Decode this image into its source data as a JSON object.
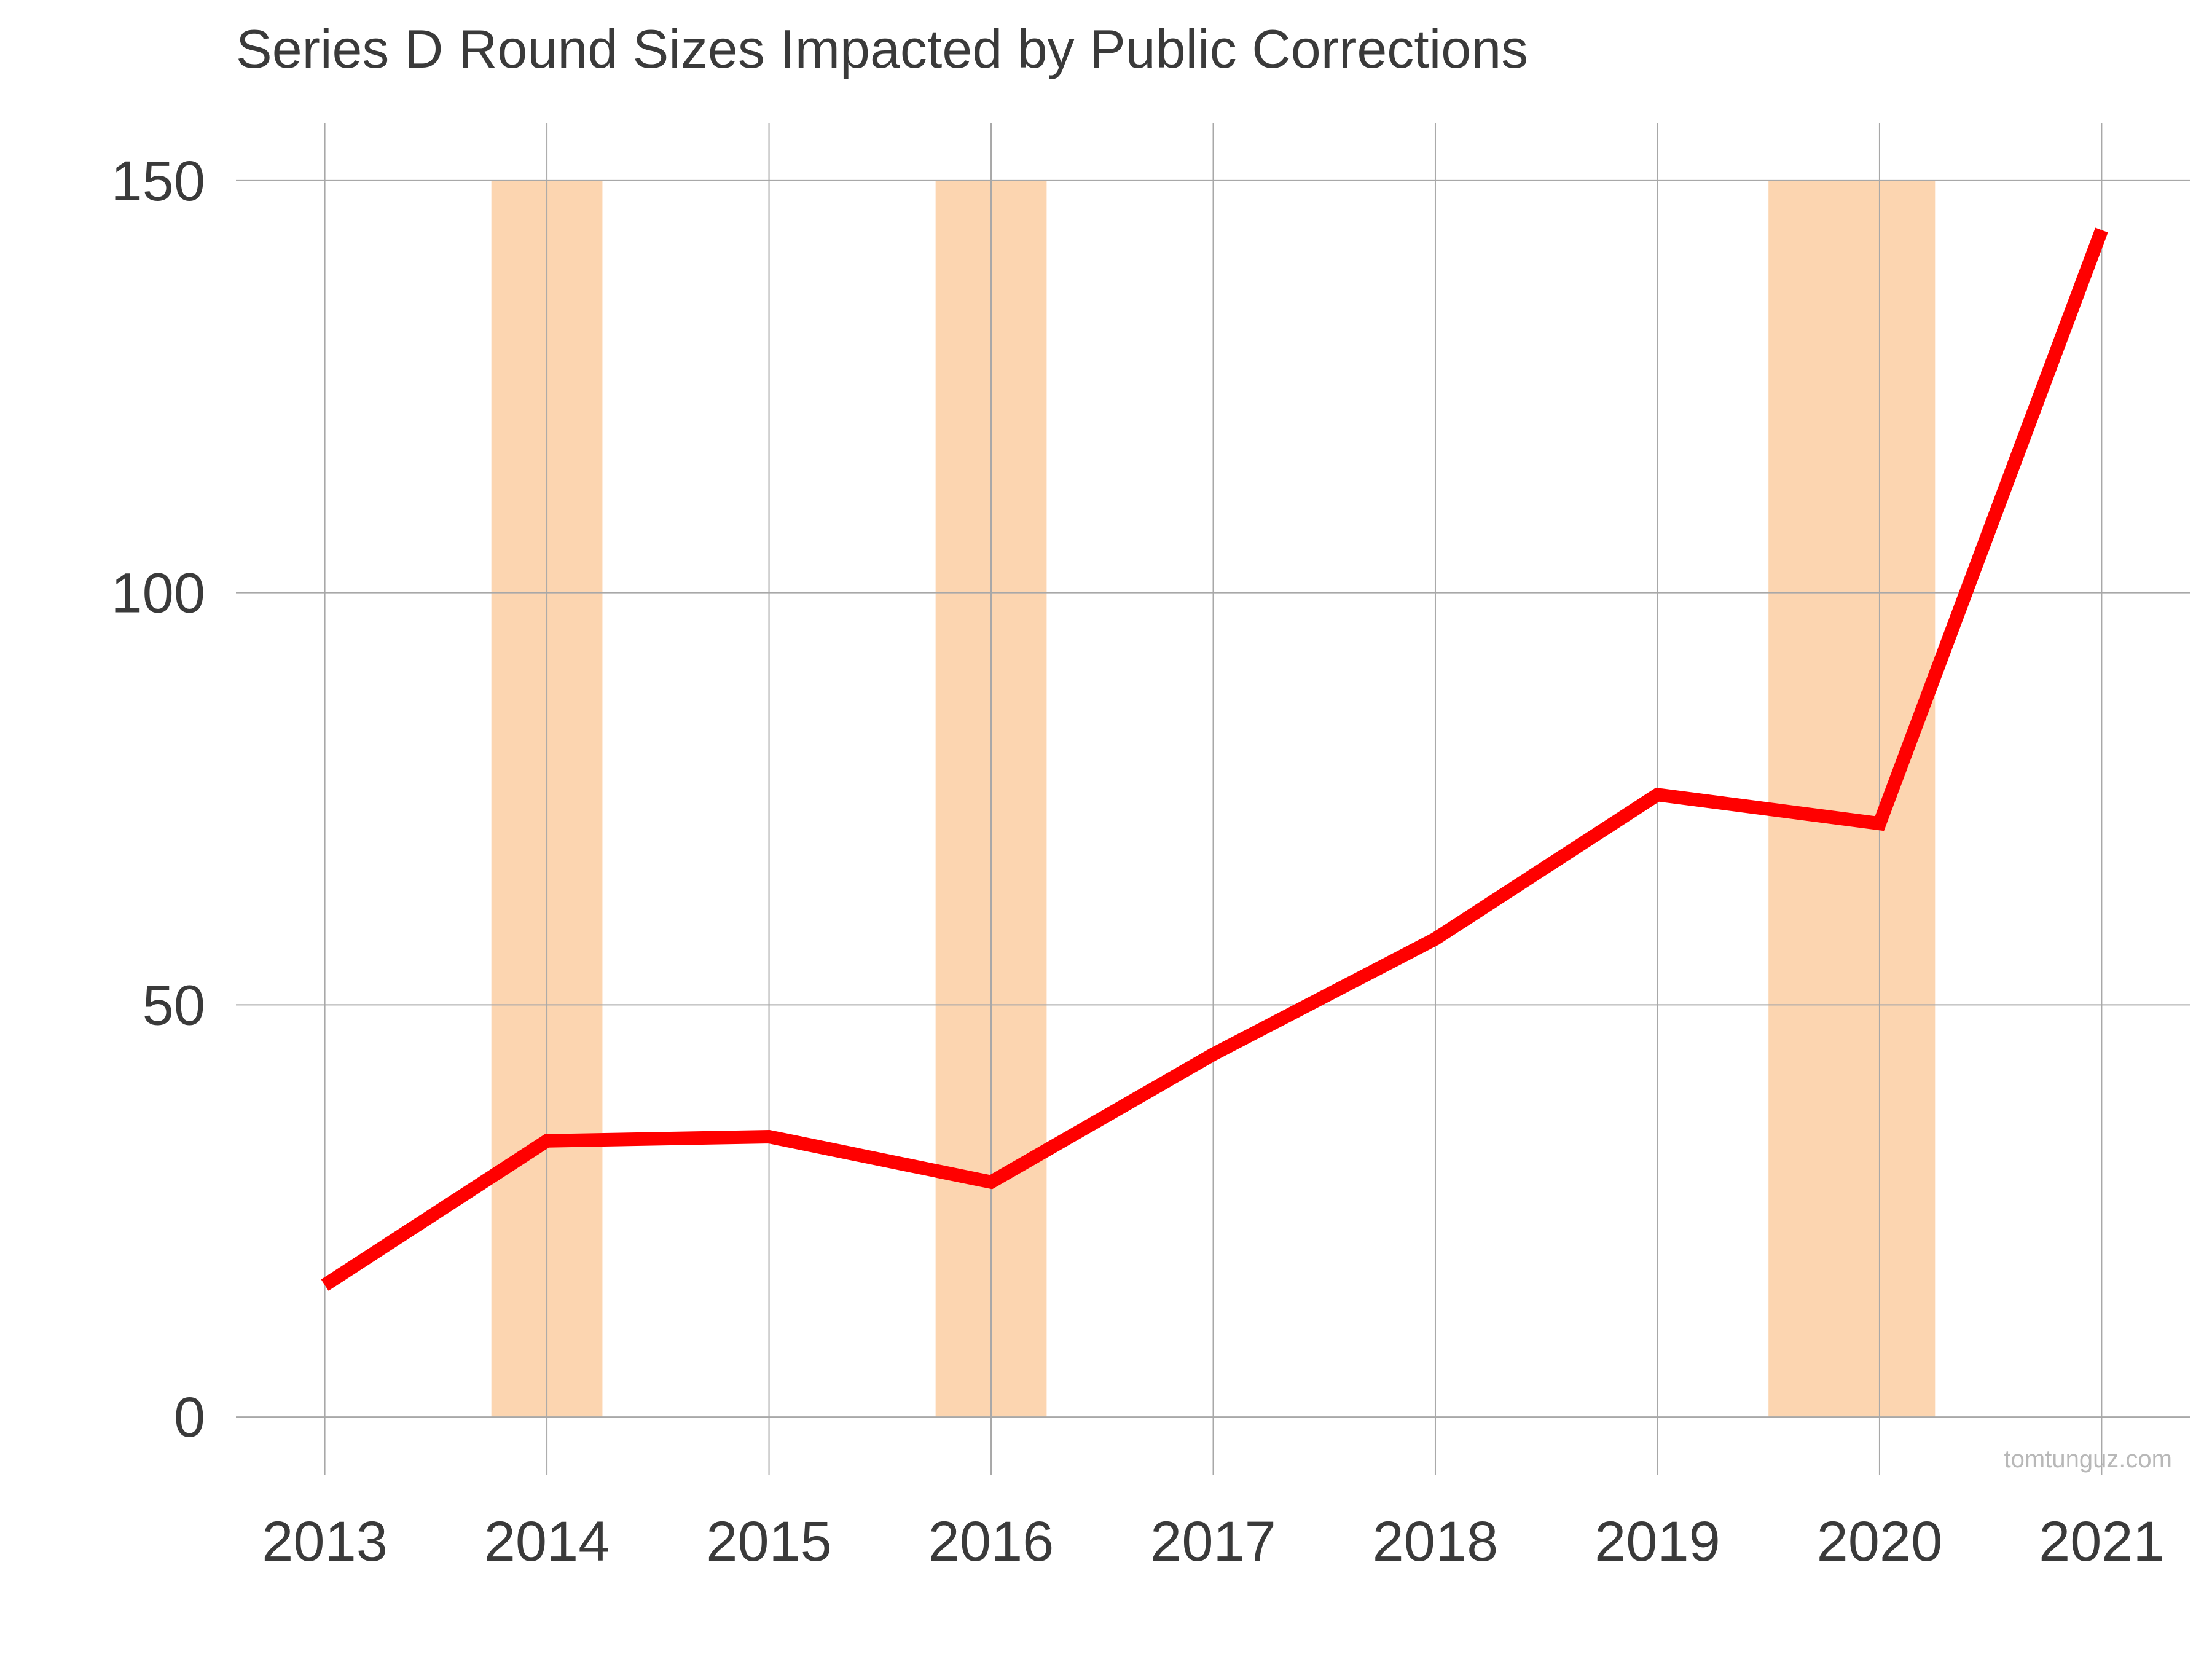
{
  "chart_data": {
    "type": "line",
    "title": "Series D Round Sizes Impacted by Public Corrections",
    "xlabel": "",
    "ylabel": "",
    "x": [
      2013,
      2014,
      2015,
      2016,
      2017,
      2018,
      2019,
      2020,
      2021
    ],
    "series": [
      {
        "values": [
          16,
          33.5,
          34,
          28.5,
          44,
          58,
          75.5,
          72,
          144
        ],
        "color": "#ff0000"
      }
    ],
    "xlim": [
      2012.6,
      2021.4
    ],
    "ylim": [
      -7,
      157
    ],
    "yticks": [
      0,
      50,
      100,
      150
    ],
    "xticks": [
      "2013",
      "2014",
      "2015",
      "2016",
      "2017",
      "2018",
      "2019",
      "2020",
      "2021"
    ],
    "shaded_regions": [
      {
        "from": 2013.75,
        "to": 2014.25,
        "y_from": 0,
        "y_to": 150
      },
      {
        "from": 2015.75,
        "to": 2016.25,
        "y_from": 0,
        "y_to": 150
      },
      {
        "from": 2019.5,
        "to": 2020.25,
        "y_from": 0,
        "y_to": 150
      }
    ],
    "shade_color": "#fcd5b0",
    "grid": true,
    "legend": "none",
    "watermark": "tomtunguz.com"
  }
}
